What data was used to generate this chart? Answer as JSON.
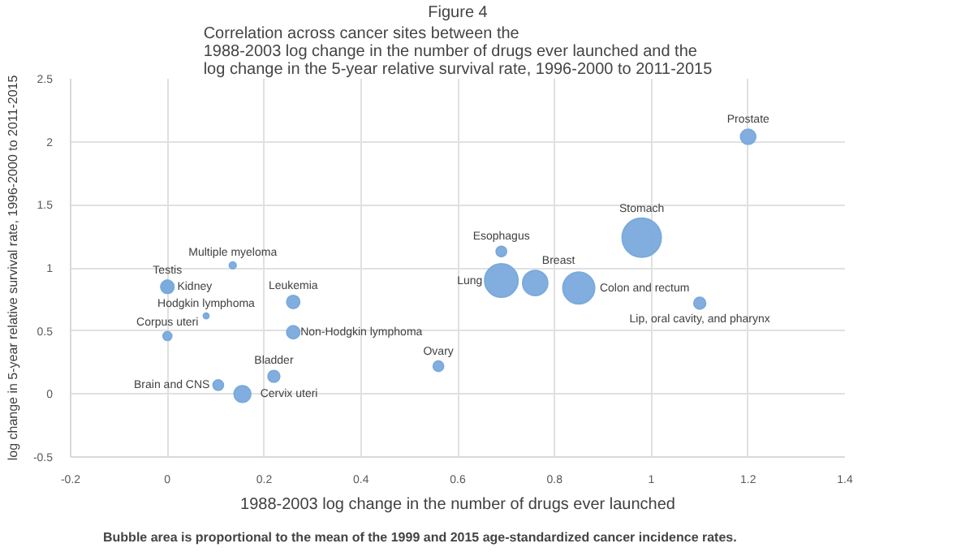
{
  "chart_data": {
    "type": "bubble",
    "title": "Figure 4",
    "subtitle": "Correlation across cancer sites between the\n1988-2003 log change in the number of drugs ever launched and the\nlog change in the 5-year relative survival rate, 1996-2000 to 2011-2015",
    "xlabel": "1988-2003 log change in the number of drugs ever launched",
    "ylabel": "log change in 5-year relative survival rate, 1996-2000 to 2011-2015",
    "x": [
      1.2,
      0.98,
      0.69,
      0.69,
      0.76,
      0.85,
      1.1,
      0.135,
      0,
      0,
      0.26,
      0.08,
      0,
      0.26,
      0.56,
      0.22,
      0.105,
      0.155
    ],
    "series": [
      {
        "color": "#7aaadc",
        "values": [
          2.04,
          1.24,
          1.13,
          0.9,
          0.88,
          0.84,
          0.72,
          1.02,
          0.85,
          0.85,
          0.73,
          0.62,
          0.46,
          0.49,
          0.22,
          0.14,
          0.07,
          0.0
        ],
        "sizes": [
          0.15,
          1,
          0.07,
          0.73,
          0.41,
          0.66,
          0.09,
          0.03,
          0.11,
          0.11,
          0.11,
          0.02,
          0.05,
          0.11,
          0.07,
          0.09,
          0.07,
          0.18
        ]
      }
    ],
    "annotations": [
      {
        "text": "Prostate",
        "x": 1.2,
        "y": 2.04
      },
      {
        "text": "Stomach",
        "x": 0.98,
        "y": 1.24
      },
      {
        "text": "Esophagus",
        "x": 0.69,
        "y": 1.13
      },
      {
        "text": "Lung",
        "x": 0.69,
        "y": 0.9
      },
      {
        "text": "Breast",
        "x": 0.76,
        "y": 0.88
      },
      {
        "text": "Colon and rectum",
        "x": 0.85,
        "y": 0.84
      },
      {
        "text": "Lip, oral cavity, and pharynx",
        "x": 1.1,
        "y": 0.72
      },
      {
        "text": "Multiple myeloma",
        "x": 0.135,
        "y": 1.02
      },
      {
        "text": "Testis",
        "x": 0,
        "y": 0.85
      },
      {
        "text": "Kidney",
        "x": 0,
        "y": 0.85
      },
      {
        "text": "Leukemia",
        "x": 0.26,
        "y": 0.73
      },
      {
        "text": "Hodgkin lymphoma",
        "x": 0.08,
        "y": 0.62
      },
      {
        "text": "Corpus uteri",
        "x": 0,
        "y": 0.46
      },
      {
        "text": "Non-Hodgkin lymphoma",
        "x": 0.26,
        "y": 0.49
      },
      {
        "text": "Ovary",
        "x": 0.56,
        "y": 0.22
      },
      {
        "text": "Bladder",
        "x": 0.22,
        "y": 0.14
      },
      {
        "text": "Brain and CNS",
        "x": 0.105,
        "y": 0.07
      },
      {
        "text": "Cervix uteri",
        "x": 0.155,
        "y": 0.0
      },
      "Bubble area is proportional to the mean of the 1999 and 2015 age-standardized cancer incidence rates."
    ],
    "xlim": [
      -0.2,
      1.4
    ],
    "xticks": [
      -0.2,
      0,
      0.2,
      0.4,
      0.6,
      0.8,
      1,
      1.2,
      1.4
    ],
    "ylim": [
      -0.5,
      2.5
    ],
    "yticks": [
      -0.5,
      0,
      0.5,
      1,
      1.5,
      2,
      2.5
    ],
    "grid": true
  }
}
